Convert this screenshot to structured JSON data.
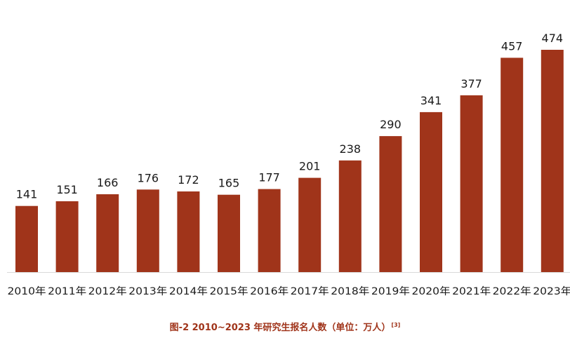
{
  "chart_data": {
    "type": "bar",
    "categories": [
      "2010年",
      "2011年",
      "2012年",
      "2013年",
      "2014年",
      "2015年",
      "2016年",
      "2017年",
      "2018年",
      "2019年",
      "2020年",
      "2021年",
      "2022年",
      "2023年"
    ],
    "values": [
      141,
      151,
      166,
      176,
      172,
      165,
      177,
      201,
      238,
      290,
      341,
      377,
      457,
      474
    ],
    "data_labels": [
      "141",
      "151",
      "166",
      "176",
      "172",
      "165",
      "177",
      "201",
      "238",
      "290",
      "341",
      "377",
      "457",
      "474"
    ],
    "ylim": [
      0,
      474
    ],
    "bar_color": "#a0341a",
    "axis_color": "#d9d9d9",
    "grid": false,
    "legend": "none"
  },
  "caption": {
    "text": "图-2 2010~2023 年研究生报名人数（单位：万人）",
    "ref": "[3]"
  }
}
